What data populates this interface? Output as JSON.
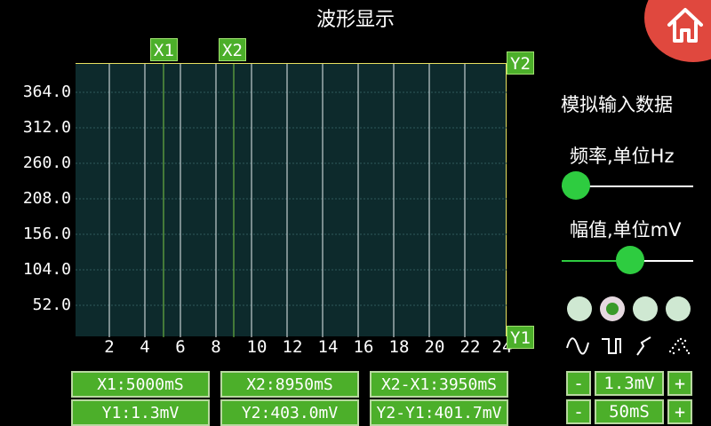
{
  "title": "波形显示",
  "colors": {
    "plot_bg": "#0d2a2c",
    "accent_green": "#4caf2a",
    "knob_green": "#2ecc40",
    "home_red": "#e0483e",
    "border_yellow": "#e8e060"
  },
  "chart": {
    "y_ticks": [
      "364.0",
      "312.0",
      "260.0",
      "208.0",
      "156.0",
      "104.0",
      "52.0"
    ],
    "x_ticks": [
      "2",
      "4",
      "6",
      "8",
      "10",
      "12",
      "14",
      "16",
      "18",
      "20",
      "22",
      "24"
    ],
    "cursors": {
      "x1": "X1",
      "x2": "X2",
      "y1": "Y1",
      "y2": "Y2"
    }
  },
  "readouts": {
    "x1": "X1:5000mS",
    "x2": "X2:8950mS",
    "dx": "X2-X1:3950mS",
    "y1": "Y1:1.3mV",
    "y2": "Y2:403.0mV",
    "dy": "Y2-Y1:401.7mV"
  },
  "panel": {
    "heading": "模拟输入数据",
    "freq_label": "频率,单位Hz",
    "amp_label": "幅值,单位mV",
    "freq_level": 0.0,
    "amp_level": 0.53,
    "waveforms": [
      "sine",
      "square",
      "triangle",
      "noise"
    ],
    "selected_waveform": 1,
    "amp_step": {
      "minus": "-",
      "value": "1.3mV",
      "plus": "+"
    },
    "time_step": {
      "minus": "-",
      "value": "50mS",
      "plus": "+"
    }
  },
  "home_icon": "home-icon"
}
